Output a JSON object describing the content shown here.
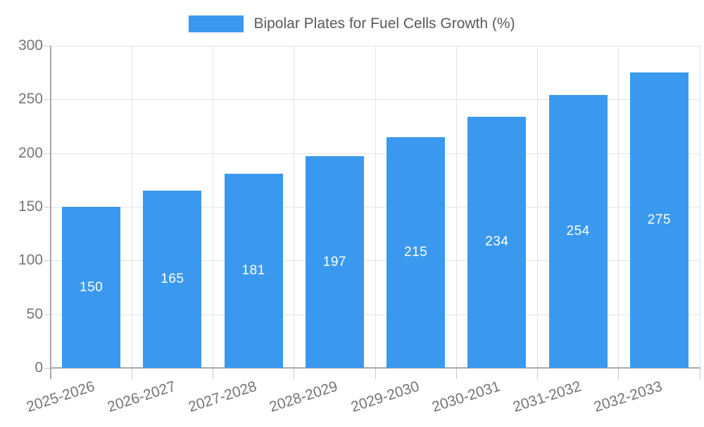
{
  "legend": {
    "label": "Bipolar Plates for Fuel Cells Growth (%)"
  },
  "chart_data": {
    "type": "bar",
    "title": "Bipolar Plates for Fuel Cells Growth (%)",
    "categories": [
      "2025-2026",
      "2026-2027",
      "2027-2028",
      "2028-2029",
      "2029-2030",
      "2030-2031",
      "2031-2032",
      "2032-2033"
    ],
    "values": [
      150,
      165,
      181,
      197,
      215,
      234,
      254,
      275
    ],
    "xlabel": "",
    "ylabel": "",
    "ylim": [
      0,
      300
    ],
    "yticks": [
      0,
      50,
      100,
      150,
      200,
      250,
      300
    ],
    "grid": true,
    "legend_position": "top-center",
    "bar_color": "#3A99EE",
    "value_labels_inside_bars": true
  },
  "colors": {
    "bar": "#3A99EE",
    "gridline": "#e3e3e3",
    "axis_line": "#a9a9a9",
    "tick_mark": "#c9c9c9",
    "axis_label_text": "#757575",
    "legend_text": "#595959",
    "value_label_text": "#ffffff",
    "background": "#ffffff"
  }
}
